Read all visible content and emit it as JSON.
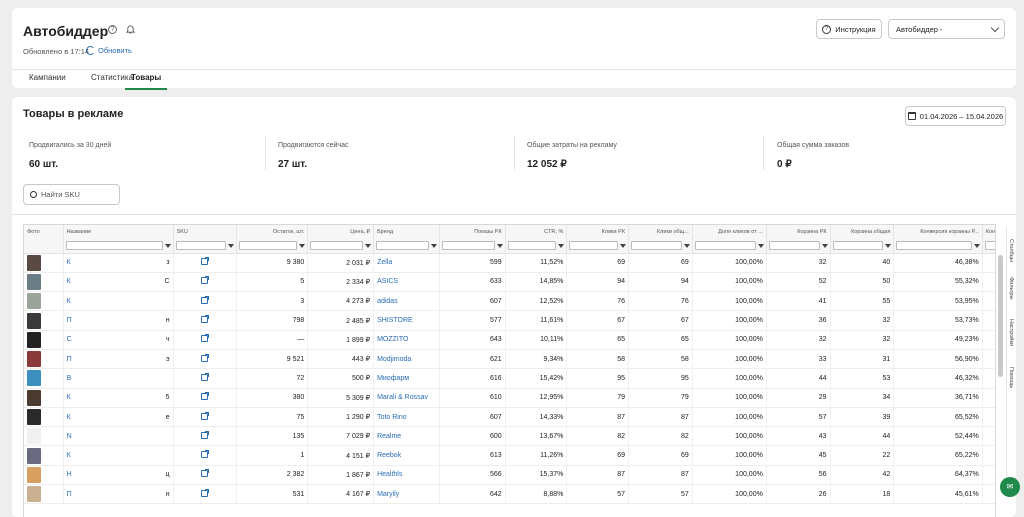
{
  "header": {
    "title": "Автобиддер",
    "updated": "Обновлено в 17:14",
    "refresh_label": "Обновить",
    "instruction_label": "Инструкция",
    "mode_select": "Автобиддер -"
  },
  "tabs": [
    {
      "label": "Кампании"
    },
    {
      "label": "Статистика"
    },
    {
      "label": "Товары"
    }
  ],
  "section": {
    "title": "Товары в рекламе",
    "date_range": "01.04.2026 – 15.04.2026",
    "search_placeholder": "Найти SKU"
  },
  "stats": [
    {
      "label": "Продвигались за 30 дней",
      "value": "60 шт."
    },
    {
      "label": "Продвигаются сейчас",
      "value": "27 шт."
    },
    {
      "label": "Общие затраты на рекламу",
      "value": "12 052 ₽"
    },
    {
      "label": "Общая сумма заказов",
      "value": "0 ₽"
    }
  ],
  "columns": [
    "Фото",
    "Название",
    "SKU",
    "Остаток, шт.",
    "Цена, ₽",
    "Бренд",
    "Показы РК",
    "CTR, %",
    "Клики РК",
    "Клики общ...",
    "Доля кликов от ...",
    "Корзина РК",
    "Корзина общая",
    "Конверсия корзины Р...",
    "Конверс"
  ],
  "rows": [
    {
      "name": "К",
      "tail": "з",
      "stock": "9 380",
      "price": "2 031 ₽",
      "brand": "Zella",
      "shows": "599",
      "ctr": "11,52%",
      "clicks_rk": "69",
      "clicks_all": "69",
      "share": "100,00%",
      "cart_rk": "32",
      "cart_all": "40",
      "conv": "46,38%",
      "img": "#5a4a44"
    },
    {
      "name": "К",
      "tail": "С",
      "stock": "5",
      "price": "2 334 ₽",
      "brand": "ASICS",
      "shows": "633",
      "ctr": "14,85%",
      "clicks_rk": "94",
      "clicks_all": "94",
      "share": "100,00%",
      "cart_rk": "52",
      "cart_all": "50",
      "conv": "55,32%",
      "img": "#6b7e86"
    },
    {
      "name": "К",
      "tail": "",
      "stock": "3",
      "price": "4 273 ₽",
      "brand": "adidas",
      "shows": "607",
      "ctr": "12,52%",
      "clicks_rk": "76",
      "clicks_all": "76",
      "share": "100,00%",
      "cart_rk": "41",
      "cart_all": "55",
      "conv": "53,95%",
      "img": "#9aa49a"
    },
    {
      "name": "П",
      "tail": "н",
      "stock": "798",
      "price": "2 485 ₽",
      "brand": "SHISTORE",
      "shows": "577",
      "ctr": "11,61%",
      "clicks_rk": "67",
      "clicks_all": "67",
      "share": "100,00%",
      "cart_rk": "36",
      "cart_all": "32",
      "conv": "53,73%",
      "img": "#3b3b3b"
    },
    {
      "name": "С",
      "tail": "ч",
      "stock": "—",
      "price": "1 899 ₽",
      "brand": "MOZZITO",
      "shows": "643",
      "ctr": "10,11%",
      "clicks_rk": "65",
      "clicks_all": "65",
      "share": "100,00%",
      "cart_rk": "32",
      "cart_all": "32",
      "conv": "49,23%",
      "img": "#222222"
    },
    {
      "name": "П",
      "tail": "э",
      "stock": "9 521",
      "price": "443 ₽",
      "brand": "Modjimoda",
      "shows": "621",
      "ctr": "9,34%",
      "clicks_rk": "58",
      "clicks_all": "58",
      "share": "100,00%",
      "cart_rk": "33",
      "cart_all": "31",
      "conv": "56,90%",
      "img": "#8a3a3a"
    },
    {
      "name": "В",
      "tail": "",
      "stock": "72",
      "price": "500 ₽",
      "brand": "Миофарм",
      "shows": "616",
      "ctr": "15,42%",
      "clicks_rk": "95",
      "clicks_all": "95",
      "share": "100,00%",
      "cart_rk": "44",
      "cart_all": "53",
      "conv": "46,32%",
      "img": "#3d8fc0"
    },
    {
      "name": "К",
      "tail": "5",
      "stock": "380",
      "price": "5 309 ₽",
      "brand": "Marali & Rossav",
      "shows": "610",
      "ctr": "12,95%",
      "clicks_rk": "79",
      "clicks_all": "79",
      "share": "100,00%",
      "cart_rk": "29",
      "cart_all": "34",
      "conv": "36,71%",
      "img": "#4a3a30"
    },
    {
      "name": "К",
      "tail": "е",
      "stock": "75",
      "price": "1 290 ₽",
      "brand": "Toto Rino",
      "shows": "607",
      "ctr": "14,33%",
      "clicks_rk": "87",
      "clicks_all": "87",
      "share": "100,00%",
      "cart_rk": "57",
      "cart_all": "39",
      "conv": "65,52%",
      "img": "#2a2a2a"
    },
    {
      "name": "N",
      "tail": "",
      "stock": "135",
      "price": "7 029 ₽",
      "brand": "Realme",
      "shows": "600",
      "ctr": "13,67%",
      "clicks_rk": "82",
      "clicks_all": "82",
      "share": "100,00%",
      "cart_rk": "43",
      "cart_all": "44",
      "conv": "52,44%",
      "img": "#f0f0f0"
    },
    {
      "name": "К",
      "tail": "",
      "stock": "1",
      "price": "4 151 ₽",
      "brand": "Reebok",
      "shows": "613",
      "ctr": "11,26%",
      "clicks_rk": "69",
      "clicks_all": "69",
      "share": "100,00%",
      "cart_rk": "45",
      "cart_all": "22",
      "conv": "65,22%",
      "img": "#6a6a80"
    },
    {
      "name": "Н",
      "tail": "ц",
      "stock": "2 382",
      "price": "1 867 ₽",
      "brand": "Healthls",
      "shows": "566",
      "ctr": "15,37%",
      "clicks_rk": "87",
      "clicks_all": "87",
      "share": "100,00%",
      "cart_rk": "56",
      "cart_all": "42",
      "conv": "64,37%",
      "img": "#d8a060"
    },
    {
      "name": "П",
      "tail": "н",
      "stock": "531",
      "price": "4 167 ₽",
      "brand": "Maryily",
      "shows": "642",
      "ctr": "8,88%",
      "clicks_rk": "57",
      "clicks_all": "57",
      "share": "100,00%",
      "cart_rk": "26",
      "cart_all": "18",
      "conv": "45,61%",
      "img": "#c8b090"
    }
  ],
  "side_tools": [
    "Столбцы",
    "Фильтры",
    "Настройки",
    "Помощь"
  ],
  "colors": {
    "accent": "#1f8a4c",
    "link": "#2a6db5"
  }
}
